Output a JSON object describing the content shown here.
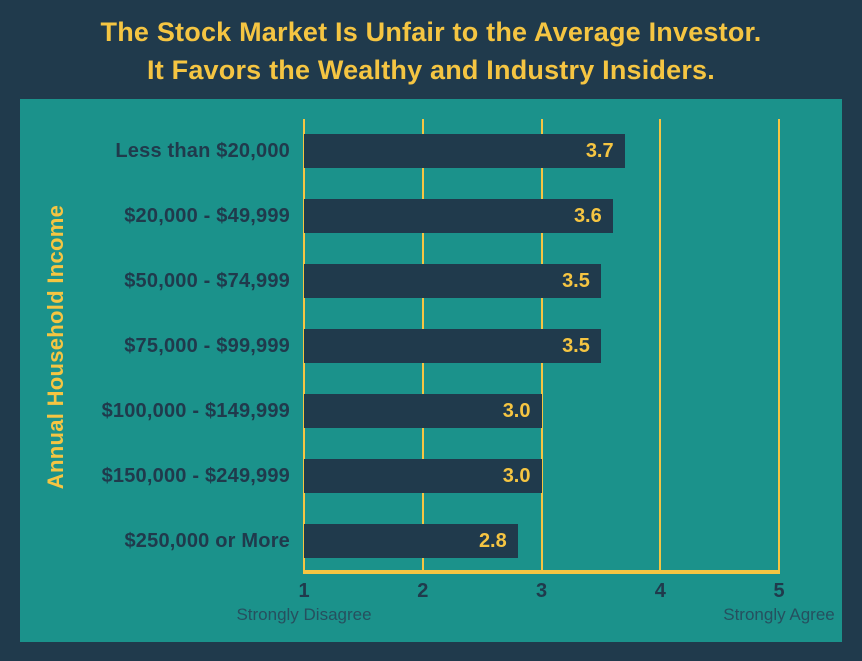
{
  "title": {
    "line1": "The Stock Market Is Unfair to the Average Investor.",
    "line2": "It Favors the Wealthy and Industry Insiders."
  },
  "chart_data": {
    "type": "bar",
    "orientation": "horizontal",
    "title": "The Stock Market Is Unfair to the Average Investor. It Favors the Wealthy and Industry Insiders.",
    "ylabel": "Annual Household Income",
    "xlabel": "",
    "categories": [
      "Less than $20,000",
      "$20,000 - $49,999",
      "$50,000 - $74,999",
      "$75,000 - $99,999",
      "$100,000 - $149,999",
      "$150,000 - $249,999",
      "$250,000 or More"
    ],
    "values": [
      3.7,
      3.6,
      3.5,
      3.5,
      3.0,
      3.0,
      2.8
    ],
    "value_labels": [
      "3.7",
      "3.6",
      "3.5",
      "3.5",
      "3.0",
      "3.0",
      "2.8"
    ],
    "xlim": [
      1,
      5
    ],
    "ticks": [
      1,
      2,
      3,
      4,
      5
    ],
    "x_axis_left_label": "Strongly Disagree",
    "x_axis_right_label": "Strongly Agree",
    "grid": true,
    "legend": "none",
    "colors": {
      "frame_background": "#203a4c",
      "plot_background": "#1b928b",
      "bar": "#203a4c",
      "accent_yellow": "#f5c542",
      "category_text": "#203a4c",
      "sub_label_text": "#26505f"
    }
  }
}
